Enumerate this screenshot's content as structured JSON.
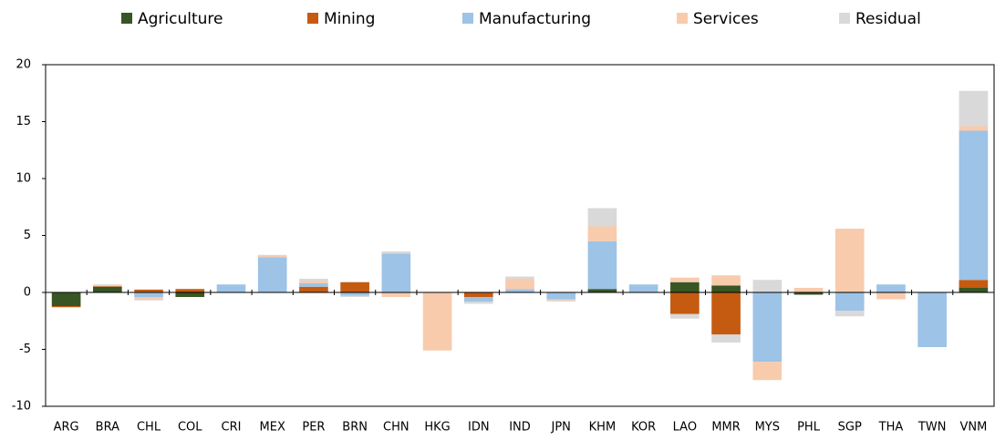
{
  "chart_data": {
    "type": "stacked_bar",
    "categories": [
      "ARG",
      "BRA",
      "CHL",
      "COL",
      "CRI",
      "MEX",
      "PER",
      "BRN",
      "CHN",
      "HKG",
      "IDN",
      "IND",
      "JPN",
      "KHM",
      "KOR",
      "LAO",
      "MMR",
      "MYS",
      "PHL",
      "SGP",
      "THA",
      "TWN",
      "VNM"
    ],
    "series": [
      {
        "name": "Agriculture",
        "color": "#375623",
        "values": [
          -1.2,
          0.5,
          0.05,
          -0.4,
          0,
          0,
          0,
          0,
          0,
          0,
          0,
          0,
          0,
          0.3,
          0,
          0.9,
          0.6,
          0,
          -0.2,
          0,
          0,
          0,
          0.4
        ]
      },
      {
        "name": "Mining",
        "color": "#c55a11",
        "values": [
          -0.1,
          0.05,
          0.2,
          0.3,
          0,
          0,
          0.5,
          0.9,
          0,
          0,
          -0.4,
          0,
          0,
          0,
          0,
          -1.9,
          -3.7,
          0,
          0,
          0,
          0,
          0,
          0.7
        ]
      },
      {
        "name": "Manufacturing",
        "color": "#9dc3e6",
        "values": [
          0,
          0,
          -0.4,
          0,
          0.7,
          3.1,
          0.3,
          -0.3,
          3.4,
          0,
          -0.4,
          0.3,
          -0.6,
          4.2,
          0.7,
          0,
          0,
          -6.1,
          0,
          -1.6,
          0.7,
          -4.8,
          13.1
        ]
      },
      {
        "name": "Services",
        "color": "#f8cbad",
        "values": [
          0,
          0.05,
          -0.2,
          0,
          0,
          0.1,
          0.2,
          0,
          -0.4,
          -5.1,
          0,
          0.9,
          -0.1,
          1.3,
          0,
          0.4,
          0.9,
          -1.6,
          0.4,
          5.6,
          -0.6,
          0,
          0.4
        ]
      },
      {
        "name": "Residual",
        "color": "#d9d9d9",
        "values": [
          0,
          0.1,
          -0.1,
          0,
          0,
          0.1,
          0.2,
          -0.1,
          0.2,
          0,
          -0.2,
          0.2,
          -0.1,
          1.6,
          0,
          -0.4,
          -0.7,
          1.1,
          0,
          -0.5,
          0,
          0,
          3.1
        ]
      }
    ],
    "ylim": [
      -10,
      20
    ],
    "yticks": [
      -10,
      -5,
      0,
      5,
      10,
      15,
      20
    ]
  }
}
